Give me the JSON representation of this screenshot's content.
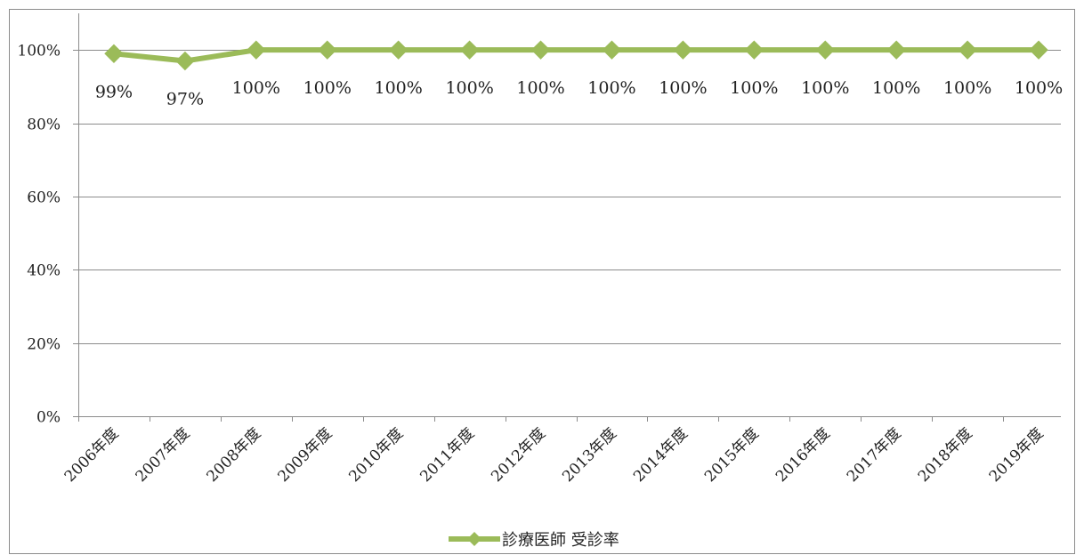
{
  "chart_data": {
    "type": "line",
    "categories": [
      "2006年度",
      "2007年度",
      "2008年度",
      "2009年度",
      "2010年度",
      "2011年度",
      "2012年度",
      "2013年度",
      "2014年度",
      "2015年度",
      "2016年度",
      "2017年度",
      "2018年度",
      "2019年度"
    ],
    "series": [
      {
        "name": "診療医師 受診率",
        "values": [
          99,
          97,
          100,
          100,
          100,
          100,
          100,
          100,
          100,
          100,
          100,
          100,
          100,
          100
        ],
        "labels": [
          "99%",
          "97%",
          "100%",
          "100%",
          "100%",
          "100%",
          "100%",
          "100%",
          "100%",
          "100%",
          "100%",
          "100%",
          "100%",
          "100%"
        ],
        "color": "#9bbb59",
        "marker": "diamond"
      }
    ],
    "ylim": [
      0,
      110
    ],
    "yticks": [
      0,
      20,
      40,
      60,
      80,
      100
    ],
    "ytick_labels": [
      "0%",
      "20%",
      "40%",
      "60%",
      "80%",
      "100%"
    ],
    "grid": true,
    "legend_position": "bottom"
  }
}
